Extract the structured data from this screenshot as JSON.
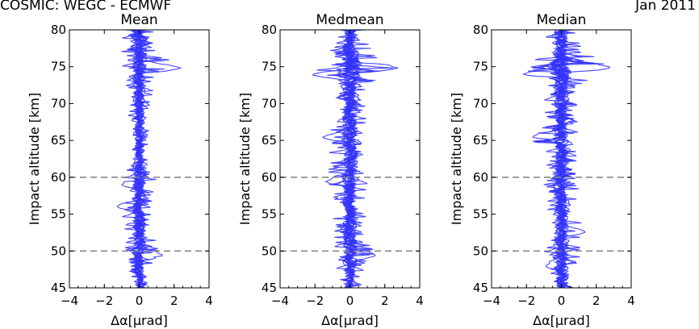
{
  "header": {
    "left_title": "COSMIC: WEGC - ECMWF",
    "right_title": "Jan 2011"
  },
  "colors": {
    "profile": "#3333ff",
    "reference_line": "#888888",
    "axes": "#000000"
  },
  "chart_data": [
    {
      "type": "line",
      "title": "Mean",
      "xlabel": "Δα[μrad]",
      "ylabel": "Impact altitude [km]",
      "xlim": [
        -4,
        4
      ],
      "ylim": [
        45,
        80
      ],
      "xticks": [
        "−4",
        "−2",
        "0",
        "2",
        "4"
      ],
      "yticks": [
        "45",
        "50",
        "55",
        "60",
        "65",
        "70",
        "75",
        "80"
      ],
      "reference_lines_y": [
        50,
        60
      ],
      "grid": false,
      "series_count": 12,
      "y": [
        45,
        47.5,
        50,
        52.5,
        55,
        57.5,
        60,
        62.5,
        65,
        67.5,
        70,
        72.5,
        75,
        77.5,
        80
      ],
      "envelope_min": [
        -0.4,
        -0.6,
        -0.9,
        -0.8,
        -1.2,
        -0.7,
        -1.2,
        -0.6,
        -0.5,
        -0.6,
        -0.7,
        -0.8,
        -1.0,
        -1.1,
        -1.0
      ],
      "envelope_max": [
        0.4,
        0.7,
        1.2,
        0.8,
        1.0,
        0.8,
        1.0,
        0.6,
        0.5,
        0.6,
        0.7,
        0.9,
        2.4,
        1.2,
        1.0
      ],
      "spikes": [
        {
          "y": 74.8,
          "x": 2.4
        },
        {
          "y": 56.0,
          "x": -1.3
        },
        {
          "y": 49.4,
          "x": 1.4
        },
        {
          "y": 59.0,
          "x": -1.0
        }
      ]
    },
    {
      "type": "line",
      "title": "Medmean",
      "xlabel": "Δα[μrad]",
      "ylabel": "Impact altitude [km]",
      "xlim": [
        -4,
        4
      ],
      "ylim": [
        45,
        80
      ],
      "xticks": [
        "−4",
        "−2",
        "0",
        "2",
        "4"
      ],
      "yticks": [
        "45",
        "50",
        "55",
        "60",
        "65",
        "70",
        "75",
        "80"
      ],
      "reference_lines_y": [
        50,
        60
      ],
      "grid": false,
      "series_count": 12,
      "y": [
        45,
        47.5,
        50,
        52.5,
        55,
        57.5,
        60,
        62.5,
        65,
        67.5,
        70,
        72.5,
        75,
        77.5,
        80
      ],
      "envelope_min": [
        -0.6,
        -0.8,
        -1.0,
        -0.9,
        -1.0,
        -1.0,
        -1.4,
        -1.1,
        -1.6,
        -1.0,
        -1.0,
        -1.1,
        -2.2,
        -1.0,
        -0.9
      ],
      "envelope_max": [
        0.6,
        0.8,
        1.5,
        0.9,
        1.0,
        1.0,
        1.1,
        1.0,
        1.0,
        1.0,
        0.9,
        1.2,
        2.8,
        1.2,
        1.0
      ],
      "spikes": [
        {
          "y": 74.8,
          "x": 2.8
        },
        {
          "y": 73.9,
          "x": -2.2
        },
        {
          "y": 65.4,
          "x": -1.6
        },
        {
          "y": 49.4,
          "x": 1.5
        },
        {
          "y": 59.4,
          "x": -1.4
        }
      ]
    },
    {
      "type": "line",
      "title": "Median",
      "xlabel": "Δα[μrad]",
      "ylabel": "Impact altitude [km]",
      "xlim": [
        -4,
        4
      ],
      "ylim": [
        45,
        80
      ],
      "xticks": [
        "−4",
        "−2",
        "0",
        "2",
        "4"
      ],
      "yticks": [
        "45",
        "50",
        "55",
        "60",
        "65",
        "70",
        "75",
        "80"
      ],
      "reference_lines_y": [
        50,
        60
      ],
      "grid": false,
      "series_count": 12,
      "y": [
        45,
        47.5,
        50,
        52.5,
        55,
        57.5,
        60,
        62.5,
        65,
        67.5,
        70,
        72.5,
        75,
        77.5,
        80
      ],
      "envelope_min": [
        -0.7,
        -0.8,
        -1.0,
        -0.8,
        -0.9,
        -0.9,
        -1.1,
        -0.9,
        -1.7,
        -1.0,
        -1.0,
        -1.1,
        -2.2,
        -1.0,
        -0.9
      ],
      "envelope_max": [
        0.7,
        0.8,
        1.2,
        1.4,
        1.0,
        1.0,
        1.1,
        1.0,
        1.0,
        1.0,
        1.0,
        1.2,
        2.9,
        1.3,
        1.0
      ],
      "spikes": [
        {
          "y": 74.9,
          "x": 2.9
        },
        {
          "y": 74.0,
          "x": -2.2
        },
        {
          "y": 65.5,
          "x": -1.7
        },
        {
          "y": 52.6,
          "x": 1.4
        },
        {
          "y": 48.0,
          "x": -0.9
        }
      ]
    }
  ]
}
